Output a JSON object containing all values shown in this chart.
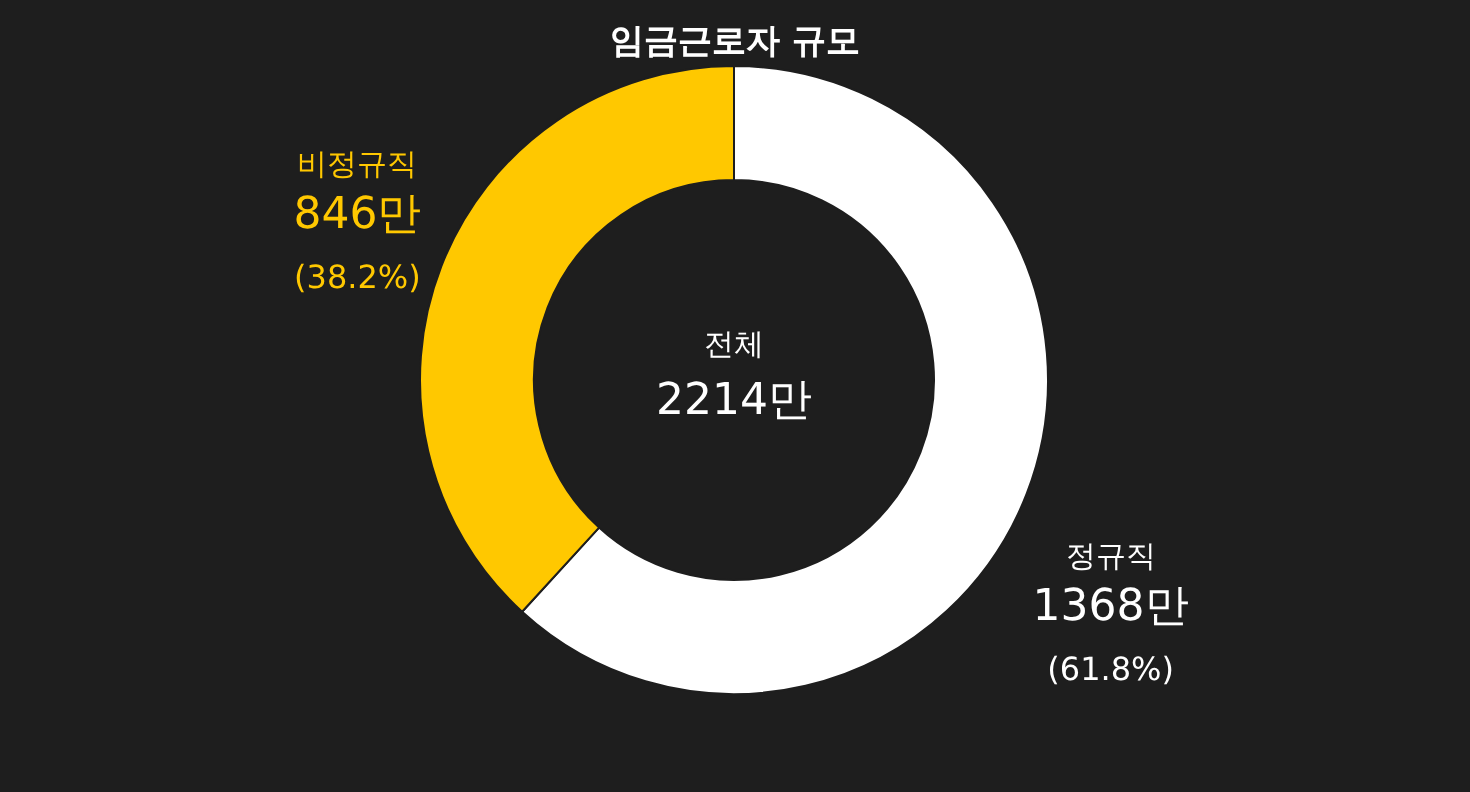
{
  "chart_data": {
    "type": "donut",
    "title": "임금근로자 규모",
    "categories": [
      "정규직",
      "비정규직"
    ],
    "values": [
      1368,
      846
    ],
    "colors": [
      "#ffffff",
      "#ffc800"
    ],
    "value_labels": [
      "1368만",
      "846만"
    ],
    "annotations": [
      "(61.8%)",
      "(38.2%)",
      "전체",
      "2214만"
    ],
    "legend": false
  }
}
